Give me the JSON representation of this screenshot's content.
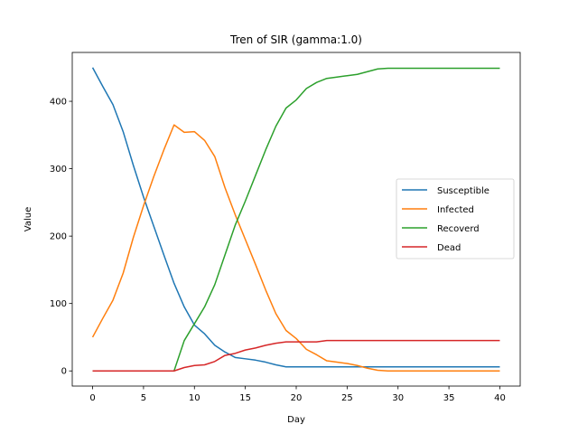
{
  "chart_data": {
    "type": "line",
    "title": "Tren of SIR (gamma:1.0)",
    "xlabel": "Day",
    "ylabel": "Value",
    "xlim": [
      -2,
      42
    ],
    "ylim": [
      -22.5,
      472.5
    ],
    "xticks": [
      0,
      5,
      10,
      15,
      20,
      25,
      30,
      35,
      40
    ],
    "yticks": [
      0,
      100,
      200,
      300,
      400
    ],
    "grid": false,
    "legend_position": "center-right",
    "x": [
      0,
      1,
      2,
      3,
      4,
      5,
      6,
      7,
      8,
      9,
      10,
      11,
      12,
      13,
      14,
      15,
      16,
      17,
      18,
      19,
      20,
      21,
      22,
      23,
      24,
      25,
      26,
      27,
      28,
      29,
      30,
      31,
      32,
      33,
      34,
      35,
      36,
      37,
      38,
      39,
      40
    ],
    "series": [
      {
        "name": "Susceptible",
        "color": "#1f77b4",
        "values": [
          450,
          422,
          395,
          355,
          305,
          258,
          215,
          172,
          130,
          95,
          68,
          55,
          38,
          28,
          20,
          18,
          16,
          13,
          9,
          6,
          6,
          6,
          6,
          6,
          6,
          6,
          6,
          6,
          6,
          6,
          6,
          6,
          6,
          6,
          6,
          6,
          6,
          6,
          6,
          6,
          6
        ]
      },
      {
        "name": "Infected",
        "color": "#ff7f0e",
        "values": [
          50,
          78,
          105,
          145,
          198,
          245,
          288,
          328,
          365,
          354,
          355,
          342,
          318,
          272,
          232,
          195,
          158,
          120,
          85,
          60,
          48,
          32,
          24,
          15,
          13,
          11,
          8,
          4,
          1,
          0,
          0,
          0,
          0,
          0,
          0,
          0,
          0,
          0,
          0,
          0,
          0
        ]
      },
      {
        "name": "Recoverd",
        "color": "#2ca02c",
        "values": [
          0,
          0,
          0,
          0,
          0,
          0,
          0,
          0,
          0,
          45,
          70,
          95,
          128,
          172,
          216,
          252,
          290,
          328,
          363,
          390,
          402,
          419,
          428,
          434,
          436,
          438,
          440,
          444,
          448,
          449,
          449,
          449,
          449,
          449,
          449,
          449,
          449,
          449,
          449,
          449,
          449
        ]
      },
      {
        "name": "Dead",
        "color": "#d62728",
        "values": [
          0,
          0,
          0,
          0,
          0,
          0,
          0,
          0,
          0,
          5,
          8,
          9,
          14,
          23,
          26,
          31,
          34,
          38,
          41,
          43,
          43,
          43,
          43,
          45,
          45,
          45,
          45,
          45,
          45,
          45,
          45,
          45,
          45,
          45,
          45,
          45,
          45,
          45,
          45,
          45,
          45
        ]
      }
    ]
  }
}
